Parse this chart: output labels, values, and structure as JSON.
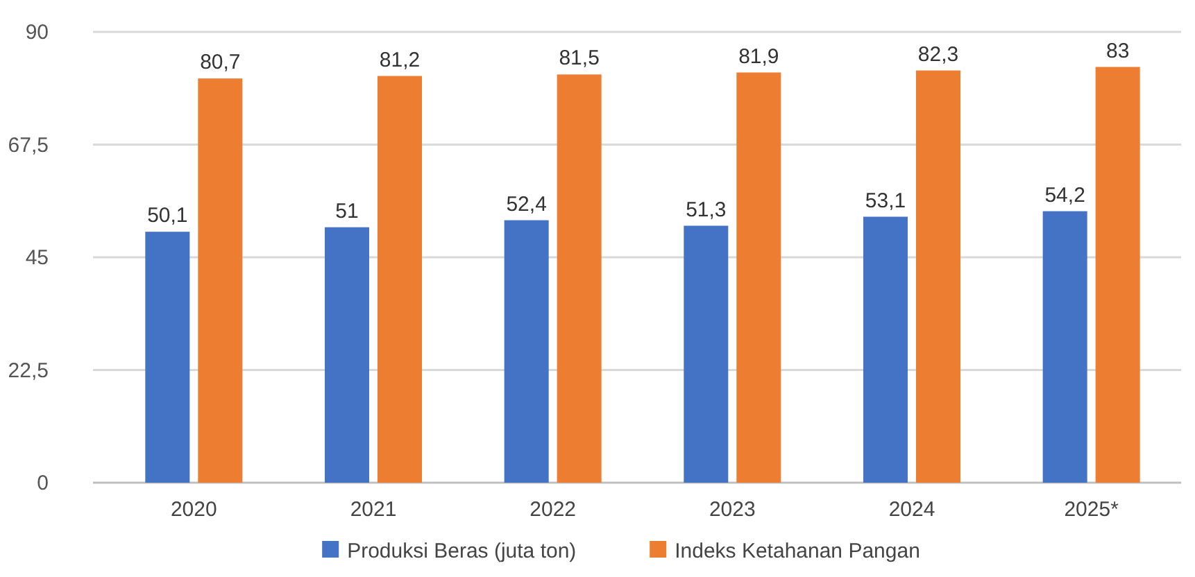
{
  "chart_data": {
    "type": "bar",
    "categories": [
      "2020",
      "2021",
      "2022",
      "2023",
      "2024",
      "2025*"
    ],
    "series": [
      {
        "name": "Produksi Beras (juta ton)",
        "color": "#4472c4",
        "values": [
          50.1,
          51,
          52.4,
          51.3,
          53.1,
          54.2
        ],
        "value_labels": [
          "50,1",
          "51",
          "52,4",
          "51,3",
          "53,1",
          "54,2"
        ]
      },
      {
        "name": "Indeks Ketahanan Pangan",
        "color": "#ed7d31",
        "values": [
          80.7,
          81.2,
          81.5,
          81.9,
          82.3,
          83
        ],
        "value_labels": [
          "80,7",
          "81,2",
          "81,5",
          "81,9",
          "82,3",
          "83"
        ]
      }
    ],
    "ylim": [
      0,
      90
    ],
    "yticks": [
      0,
      {
        "value": 22.5,
        "label": "22,5"
      },
      45,
      {
        "value": 67.5,
        "label": "67,5"
      },
      90
    ],
    "grid": "y",
    "legend": "bottom"
  }
}
